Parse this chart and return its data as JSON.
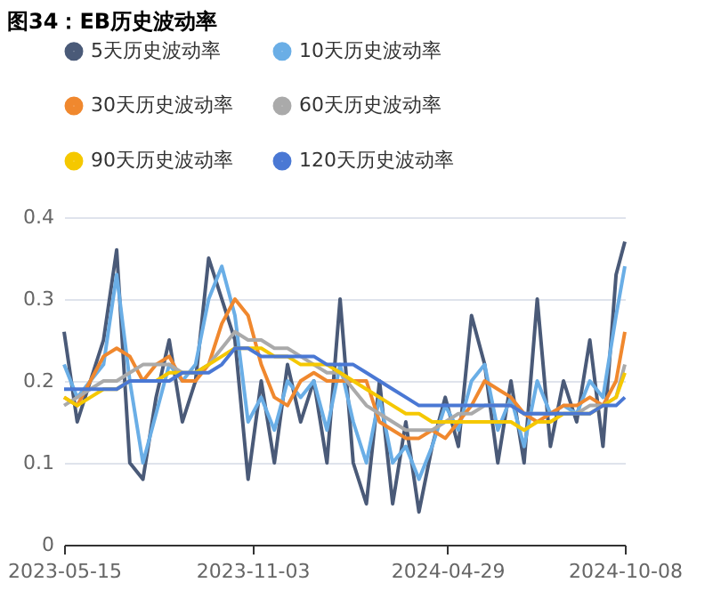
{
  "chart_data": {
    "type": "line",
    "title": "图34：EB历史波动率",
    "x": [
      "2023-05-15",
      "2023-05-27",
      "2023-06-08",
      "2023-06-20",
      "2023-07-02",
      "2023-07-14",
      "2023-07-26",
      "2023-08-07",
      "2023-08-19",
      "2023-08-31",
      "2023-09-12",
      "2023-09-24",
      "2023-10-06",
      "2023-10-18",
      "2023-10-30",
      "2023-11-11",
      "2023-11-23",
      "2023-12-05",
      "2023-12-17",
      "2023-12-29",
      "2024-01-10",
      "2024-01-22",
      "2024-02-03",
      "2024-02-15",
      "2024-02-27",
      "2024-03-10",
      "2024-03-22",
      "2024-04-03",
      "2024-04-15",
      "2024-04-27",
      "2024-05-09",
      "2024-05-21",
      "2024-06-02",
      "2024-06-14",
      "2024-06-26",
      "2024-07-08",
      "2024-07-20",
      "2024-08-01",
      "2024-08-13",
      "2024-08-25",
      "2024-09-06",
      "2024-09-18",
      "2024-09-30",
      "2024-10-08"
    ],
    "series": [
      {
        "name": "5天历史波动率",
        "color": "#4a5a78",
        "values": [
          0.26,
          0.15,
          0.2,
          0.25,
          0.36,
          0.1,
          0.08,
          0.18,
          0.25,
          0.15,
          0.2,
          0.35,
          0.3,
          0.25,
          0.08,
          0.2,
          0.1,
          0.22,
          0.15,
          0.2,
          0.1,
          0.3,
          0.1,
          0.05,
          0.2,
          0.05,
          0.15,
          0.04,
          0.12,
          0.18,
          0.12,
          0.28,
          0.22,
          0.1,
          0.2,
          0.1,
          0.3,
          0.12,
          0.2,
          0.15,
          0.25,
          0.12,
          0.33,
          0.37
        ]
      },
      {
        "name": "10天历史波动率",
        "color": "#6aaee6",
        "values": [
          0.22,
          0.18,
          0.2,
          0.22,
          0.33,
          0.2,
          0.1,
          0.16,
          0.22,
          0.2,
          0.22,
          0.3,
          0.34,
          0.28,
          0.15,
          0.18,
          0.14,
          0.2,
          0.18,
          0.2,
          0.14,
          0.22,
          0.15,
          0.1,
          0.18,
          0.1,
          0.12,
          0.08,
          0.12,
          0.17,
          0.14,
          0.2,
          0.22,
          0.14,
          0.18,
          0.12,
          0.2,
          0.16,
          0.17,
          0.16,
          0.2,
          0.18,
          0.28,
          0.34
        ]
      },
      {
        "name": "30天历史波动率",
        "color": "#f0882e",
        "values": [
          0.18,
          0.17,
          0.2,
          0.23,
          0.24,
          0.23,
          0.2,
          0.22,
          0.23,
          0.2,
          0.2,
          0.22,
          0.27,
          0.3,
          0.28,
          0.22,
          0.18,
          0.17,
          0.2,
          0.21,
          0.2,
          0.2,
          0.2,
          0.2,
          0.15,
          0.14,
          0.13,
          0.13,
          0.14,
          0.13,
          0.15,
          0.17,
          0.2,
          0.19,
          0.18,
          0.16,
          0.15,
          0.16,
          0.17,
          0.17,
          0.18,
          0.17,
          0.2,
          0.26
        ]
      },
      {
        "name": "60天历史波动率",
        "color": "#aaaaaa",
        "values": [
          0.17,
          0.18,
          0.19,
          0.2,
          0.2,
          0.21,
          0.22,
          0.22,
          0.22,
          0.21,
          0.21,
          0.22,
          0.24,
          0.26,
          0.25,
          0.25,
          0.24,
          0.24,
          0.23,
          0.22,
          0.21,
          0.21,
          0.19,
          0.17,
          0.16,
          0.15,
          0.14,
          0.14,
          0.14,
          0.15,
          0.16,
          0.16,
          0.17,
          0.17,
          0.17,
          0.16,
          0.16,
          0.16,
          0.16,
          0.16,
          0.17,
          0.17,
          0.18,
          0.22
        ]
      },
      {
        "name": "90天历史波动率",
        "color": "#f5c800",
        "values": [
          0.18,
          0.17,
          0.18,
          0.19,
          0.19,
          0.2,
          0.2,
          0.2,
          0.21,
          0.21,
          0.21,
          0.22,
          0.23,
          0.24,
          0.24,
          0.24,
          0.23,
          0.23,
          0.22,
          0.22,
          0.22,
          0.21,
          0.2,
          0.19,
          0.18,
          0.17,
          0.16,
          0.16,
          0.15,
          0.15,
          0.15,
          0.15,
          0.15,
          0.15,
          0.15,
          0.14,
          0.15,
          0.15,
          0.16,
          0.16,
          0.16,
          0.17,
          0.18,
          0.21
        ]
      },
      {
        "name": "120天历史波动率",
        "color": "#4a78d4",
        "values": [
          0.19,
          0.19,
          0.19,
          0.19,
          0.19,
          0.2,
          0.2,
          0.2,
          0.2,
          0.21,
          0.21,
          0.21,
          0.22,
          0.24,
          0.24,
          0.23,
          0.23,
          0.23,
          0.23,
          0.23,
          0.22,
          0.22,
          0.22,
          0.21,
          0.2,
          0.19,
          0.18,
          0.17,
          0.17,
          0.17,
          0.17,
          0.17,
          0.17,
          0.17,
          0.17,
          0.16,
          0.16,
          0.16,
          0.16,
          0.16,
          0.16,
          0.17,
          0.17,
          0.18
        ]
      }
    ],
    "xlim": [
      "2023-05-15",
      "2024-10-08"
    ],
    "xticks": [
      "2023-05-15",
      "2023-11-03",
      "2024-04-29",
      "2024-10-08"
    ],
    "ylim": [
      0,
      0.4
    ],
    "yticks": [
      0,
      0.1,
      0.2,
      0.3,
      0.4
    ],
    "grid": "y",
    "legend": "top",
    "marker": "none",
    "line_style": "solid"
  }
}
